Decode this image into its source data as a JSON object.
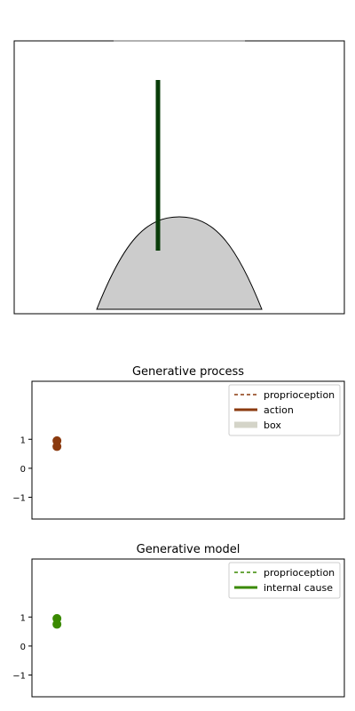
{
  "scene": {
    "description_colors": {
      "arm": "#0a3d0a",
      "box_fill": "#cccccc",
      "box_edge": "#000000"
    }
  },
  "chart_data": [
    {
      "type": "scatter",
      "title": "Generative process",
      "xlabel": "",
      "ylabel": "",
      "yticks": [
        "1",
        "0",
        "−1"
      ],
      "ytick_values": [
        1,
        0,
        -1
      ],
      "ylim": [
        -1.75,
        3.0
      ],
      "xlim": [
        0,
        10
      ],
      "legend": {
        "position": "top-right",
        "entries": [
          {
            "label": "proprioception",
            "color": "#8b3a0f",
            "style": "dashed"
          },
          {
            "label": "action",
            "color": "#8b3a0f",
            "style": "solid"
          },
          {
            "label": "box",
            "color": "#d4d4c8",
            "style": "solid-thick"
          }
        ]
      },
      "series": [
        {
          "color": "#8b3a0f",
          "points": [
            {
              "x": 0.8,
              "y": 0.95
            },
            {
              "x": 0.8,
              "y": 0.75
            }
          ]
        }
      ]
    },
    {
      "type": "scatter",
      "title": "Generative model",
      "xlabel": "",
      "ylabel": "",
      "yticks": [
        "1",
        "0",
        "−1"
      ],
      "ytick_values": [
        1,
        0,
        -1
      ],
      "ylim": [
        -1.75,
        3.0
      ],
      "xlim": [
        0,
        10
      ],
      "legend": {
        "position": "top-right",
        "entries": [
          {
            "label": "proprioception",
            "color": "#3a8a00",
            "style": "dashed"
          },
          {
            "label": "internal cause",
            "color": "#3a8a00",
            "style": "solid"
          }
        ]
      },
      "series": [
        {
          "color": "#3a8a00",
          "points": [
            {
              "x": 0.8,
              "y": 0.95
            },
            {
              "x": 0.8,
              "y": 0.75
            }
          ]
        }
      ]
    }
  ]
}
